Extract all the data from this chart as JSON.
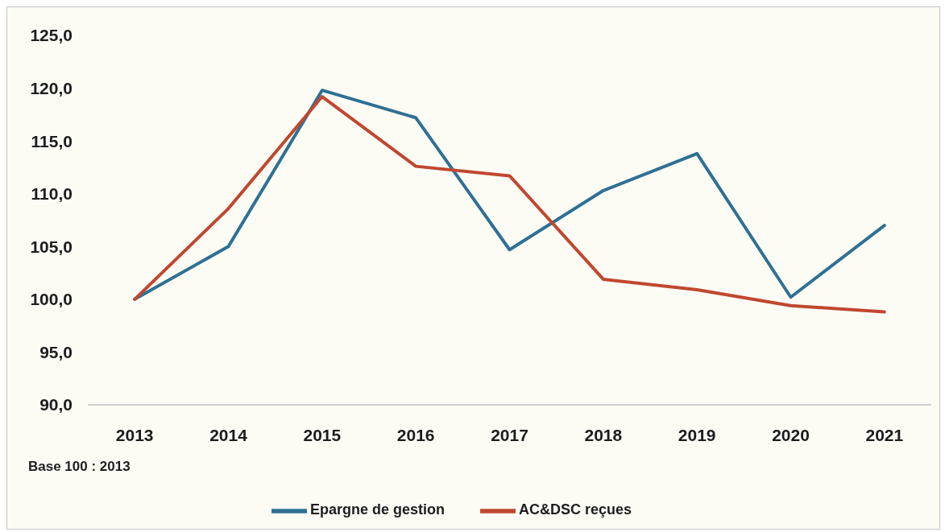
{
  "chart_data": {
    "type": "line",
    "categories": [
      "2013",
      "2014",
      "2015",
      "2016",
      "2017",
      "2018",
      "2019",
      "2020",
      "2021"
    ],
    "series": [
      {
        "name": "Epargne de gestion",
        "color": "#2f7093",
        "values": [
          100.0,
          105.0,
          119.8,
          117.2,
          104.7,
          110.3,
          113.8,
          100.2,
          107.0
        ]
      },
      {
        "name": "AC&DSC reçues",
        "color": "#c0472f",
        "values": [
          100.0,
          108.6,
          119.2,
          112.6,
          111.7,
          101.9,
          100.9,
          99.4,
          98.8
        ]
      }
    ],
    "ylim": [
      90,
      125
    ],
    "yticks": [
      {
        "value": 90,
        "label": "90,0"
      },
      {
        "value": 95,
        "label": "95,0"
      },
      {
        "value": 100,
        "label": "100,0"
      },
      {
        "value": 105,
        "label": "105,0"
      },
      {
        "value": 110,
        "label": "110,0"
      },
      {
        "value": 115,
        "label": "115,0"
      },
      {
        "value": 120,
        "label": "120,0"
      },
      {
        "value": 125,
        "label": "125,0"
      }
    ],
    "annotations": [
      "Base 100 : 2013"
    ],
    "legend": "bottom",
    "marker": "none",
    "line_style": "solid"
  }
}
